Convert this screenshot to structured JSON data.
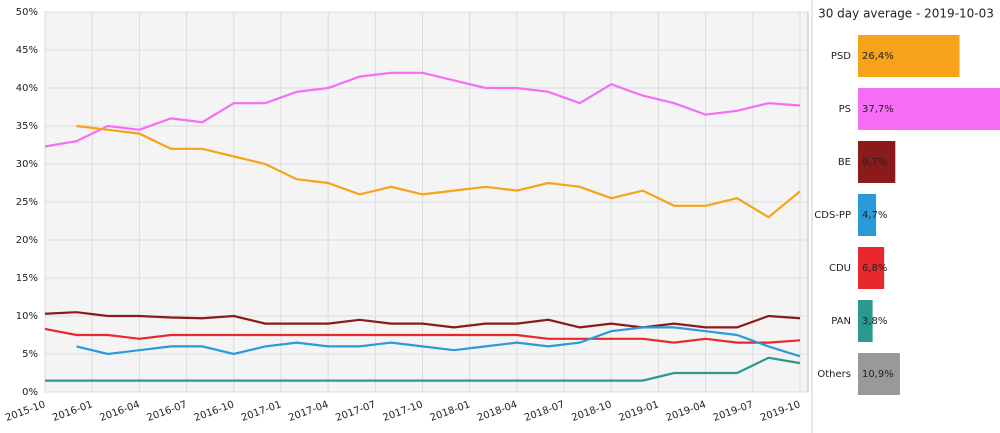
{
  "chart_data": [
    {
      "type": "line",
      "x": [
        "2015-10",
        "2015-12",
        "2016-02",
        "2016-04",
        "2016-06",
        "2016-08",
        "2016-10",
        "2016-12",
        "2017-02",
        "2017-04",
        "2017-06",
        "2017-08",
        "2017-10",
        "2017-12",
        "2018-02",
        "2018-04",
        "2018-06",
        "2018-08",
        "2018-10",
        "2018-12",
        "2019-02",
        "2019-04",
        "2019-06",
        "2019-08",
        "2019-10"
      ],
      "xlim": [
        "2015-10",
        "2019-10"
      ],
      "xticks": [
        "2015-10",
        "2016-01",
        "2016-04",
        "2016-07",
        "2016-10",
        "2017-01",
        "2017-04",
        "2017-07",
        "2017-10",
        "2018-01",
        "2018-04",
        "2018-07",
        "2018-10",
        "2019-01",
        "2019-04",
        "2019-07",
        "2019-10"
      ],
      "ylim": [
        0,
        50
      ],
      "yticks": [
        {
          "value": 0,
          "label": "0%"
        },
        {
          "value": 5,
          "label": "5%"
        },
        {
          "value": 10,
          "label": "10%"
        },
        {
          "value": 15,
          "label": "15%"
        },
        {
          "value": 20,
          "label": "20%"
        },
        {
          "value": 25,
          "label": "25%"
        },
        {
          "value": 30,
          "label": "30%"
        },
        {
          "value": 35,
          "label": "35%"
        },
        {
          "value": 40,
          "label": "40%"
        },
        {
          "value": 45,
          "label": "45%"
        },
        {
          "value": 50,
          "label": "50%"
        }
      ],
      "grid": true,
      "series": [
        {
          "name": "PS",
          "color": "#f56ef5",
          "values": [
            32.3,
            33,
            35,
            34.5,
            36,
            35.5,
            38,
            38,
            39.5,
            40,
            41.5,
            42,
            42,
            41,
            40,
            40,
            39.5,
            38,
            40.5,
            39,
            38,
            36.5,
            37,
            38,
            37.7
          ]
        },
        {
          "name": "PSD",
          "color": "#f7a21b",
          "values": [
            null,
            35,
            34.5,
            34,
            32,
            32,
            31,
            30,
            28,
            27.5,
            26,
            27,
            26,
            26.5,
            27,
            26.5,
            27.5,
            27,
            25.5,
            26.5,
            24.5,
            24.5,
            25.5,
            23,
            26.4
          ]
        },
        {
          "name": "BE",
          "color": "#8b1a1a",
          "values": [
            10.3,
            10.5,
            10,
            10,
            9.8,
            9.7,
            10,
            9,
            9,
            9,
            9.5,
            9,
            9,
            8.5,
            9,
            9,
            9.5,
            8.5,
            9,
            8.5,
            9,
            8.5,
            8.5,
            10,
            9.7
          ]
        },
        {
          "name": "CDU",
          "color": "#e8282d",
          "values": [
            8.3,
            7.5,
            7.5,
            7,
            7.5,
            7.5,
            7.5,
            7.5,
            7.5,
            7.5,
            7.5,
            7.5,
            7.5,
            7.5,
            7.5,
            7.5,
            7,
            7,
            7,
            7,
            6.5,
            7,
            6.5,
            6.5,
            6.8
          ]
        },
        {
          "name": "CDS-PP",
          "color": "#2a9bd8",
          "values": [
            null,
            6,
            5,
            5.5,
            6,
            6,
            5,
            6,
            6.5,
            6,
            6,
            6.5,
            6,
            5.5,
            6,
            6.5,
            6,
            6.5,
            8,
            8.5,
            8.5,
            8,
            7.5,
            6,
            4.7
          ]
        },
        {
          "name": "PAN",
          "color": "#2a9a8c",
          "values": [
            1.5,
            1.5,
            1.5,
            1.5,
            1.5,
            1.5,
            1.5,
            1.5,
            1.5,
            1.5,
            1.5,
            1.5,
            1.5,
            1.5,
            1.5,
            1.5,
            1.5,
            1.5,
            1.5,
            1.5,
            2.5,
            2.5,
            2.5,
            4.5,
            3.8
          ]
        }
      ]
    },
    {
      "type": "hbar",
      "title": "30 day average - 2019-10-03",
      "categories": [
        "PSD",
        "PS",
        "BE",
        "CDS-PP",
        "CDU",
        "PAN",
        "Others"
      ],
      "values": [
        26.4,
        37.7,
        9.7,
        4.7,
        6.8,
        3.8,
        10.9
      ],
      "value_labels": [
        "26,4%",
        "37,7%",
        "9,7%",
        "4,7%",
        "6,8%",
        "3,8%",
        "10,9%"
      ],
      "colors": [
        "#f7a21b",
        "#f56ef5",
        "#8b1a1a",
        "#2a9bd8",
        "#e8282d",
        "#2a9a8c",
        "#999999"
      ]
    }
  ]
}
